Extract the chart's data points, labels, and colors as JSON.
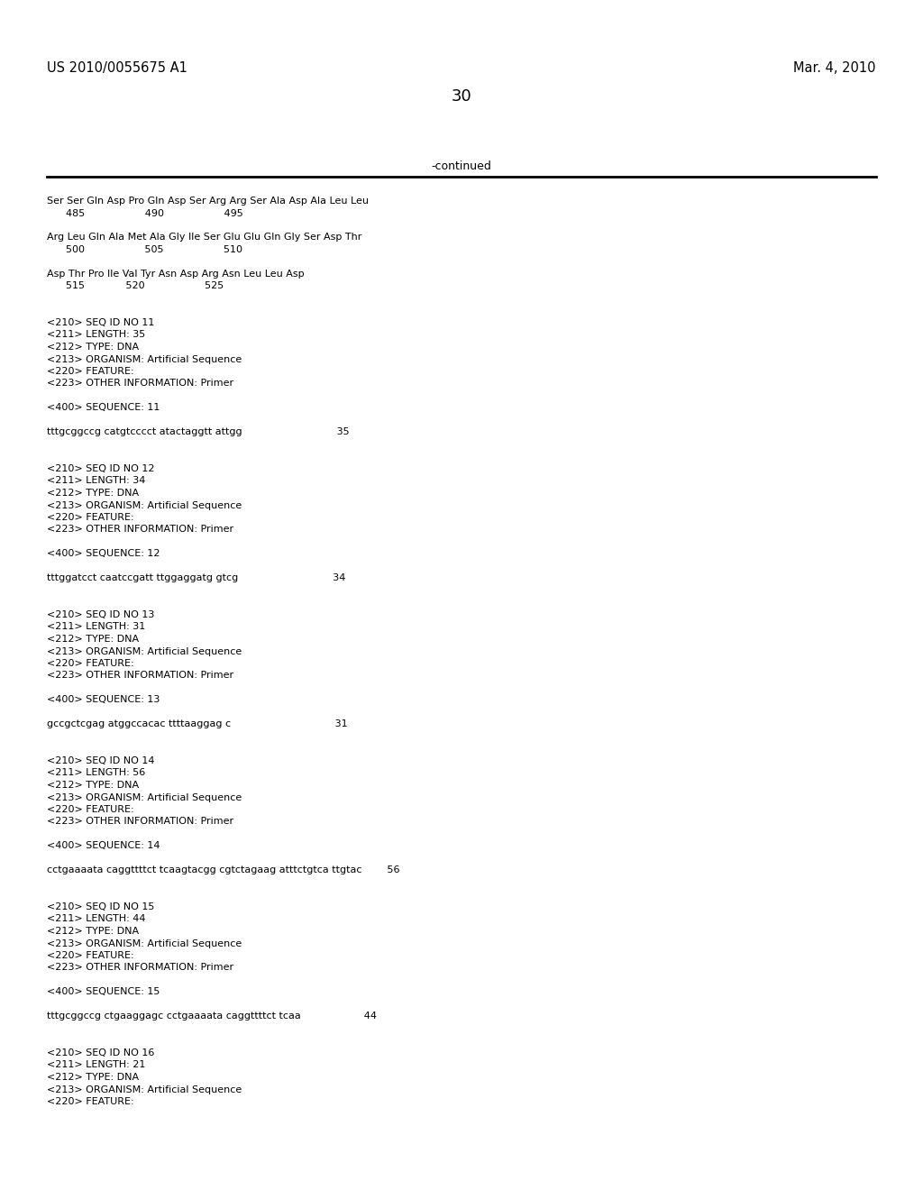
{
  "background_color": "#ffffff",
  "header_left": "US 2010/0055675 A1",
  "header_right": "Mar. 4, 2010",
  "page_number": "30",
  "continued_label": "-continued",
  "font_family": "Courier New",
  "header_fontsize": 10.5,
  "page_fontsize": 13,
  "body_fontsize": 8.0,
  "lines": [
    "Ser Ser Gln Asp Pro Gln Asp Ser Arg Arg Ser Ala Asp Ala Leu Leu",
    "      485                   490                   495",
    "",
    "Arg Leu Gln Ala Met Ala Gly Ile Ser Glu Glu Gln Gly Ser Asp Thr",
    "      500                   505                   510",
    "",
    "Asp Thr Pro Ile Val Tyr Asn Asp Arg Asn Leu Leu Asp",
    "      515             520                   525",
    "",
    "",
    "<210> SEQ ID NO 11",
    "<211> LENGTH: 35",
    "<212> TYPE: DNA",
    "<213> ORGANISM: Artificial Sequence",
    "<220> FEATURE:",
    "<223> OTHER INFORMATION: Primer",
    "",
    "<400> SEQUENCE: 11",
    "",
    "tttgcggccg catgtcccct atactaggtt attgg                              35",
    "",
    "",
    "<210> SEQ ID NO 12",
    "<211> LENGTH: 34",
    "<212> TYPE: DNA",
    "<213> ORGANISM: Artificial Sequence",
    "<220> FEATURE:",
    "<223> OTHER INFORMATION: Primer",
    "",
    "<400> SEQUENCE: 12",
    "",
    "tttggatcct caatccgatt ttggaggatg gtcg                              34",
    "",
    "",
    "<210> SEQ ID NO 13",
    "<211> LENGTH: 31",
    "<212> TYPE: DNA",
    "<213> ORGANISM: Artificial Sequence",
    "<220> FEATURE:",
    "<223> OTHER INFORMATION: Primer",
    "",
    "<400> SEQUENCE: 13",
    "",
    "gccgctcgag atggccacac ttttaaggag c                                 31",
    "",
    "",
    "<210> SEQ ID NO 14",
    "<211> LENGTH: 56",
    "<212> TYPE: DNA",
    "<213> ORGANISM: Artificial Sequence",
    "<220> FEATURE:",
    "<223> OTHER INFORMATION: Primer",
    "",
    "<400> SEQUENCE: 14",
    "",
    "cctgaaaata caggttttct tcaagtacgg cgtctagaag atttctgtca ttgtac        56",
    "",
    "",
    "<210> SEQ ID NO 15",
    "<211> LENGTH: 44",
    "<212> TYPE: DNA",
    "<213> ORGANISM: Artificial Sequence",
    "<220> FEATURE:",
    "<223> OTHER INFORMATION: Primer",
    "",
    "<400> SEQUENCE: 15",
    "",
    "tttgcggccg ctgaaggagc cctgaaaata caggttttct tcaa                    44",
    "",
    "",
    "<210> SEQ ID NO 16",
    "<211> LENGTH: 21",
    "<212> TYPE: DNA",
    "<213> ORGANISM: Artificial Sequence",
    "<220> FEATURE:"
  ]
}
